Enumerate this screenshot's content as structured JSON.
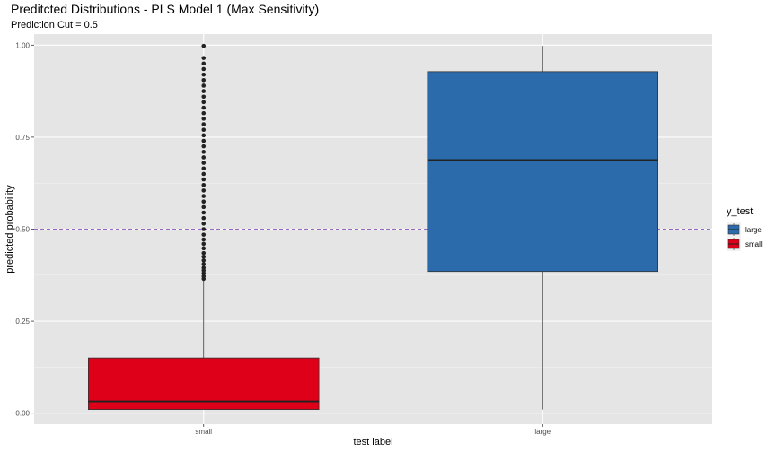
{
  "chart_data": {
    "type": "boxplot",
    "title": "Preditcted Distributions - PLS Model 1 (Max Sensitivity)",
    "subtitle": "Prediction Cut = 0.5",
    "xlabel": "test label",
    "ylabel": "predicted probability",
    "categories": [
      "small",
      "large"
    ],
    "ylim": [
      -0.03,
      1.03
    ],
    "yticks": [
      0.0,
      0.25,
      0.5,
      0.75,
      1.0
    ],
    "ytick_labels": [
      "0.00",
      "0.25",
      "0.50",
      "0.75",
      "1.00"
    ],
    "grid": true,
    "reference_line": {
      "y": 0.5,
      "style": "dashed",
      "color": "#9966cc"
    },
    "legend": {
      "title": "y_test",
      "placement": "right",
      "entries": [
        {
          "label": "large",
          "color": "#2b6aab"
        },
        {
          "label": "small",
          "color": "#de0018"
        }
      ]
    },
    "boxes": [
      {
        "category": "small",
        "color": "#de0018",
        "min": 0.01,
        "q1": 0.01,
        "median": 0.032,
        "q3": 0.15,
        "whisker_high": 0.365,
        "outliers": [
          0.365,
          0.372,
          0.38,
          0.388,
          0.395,
          0.405,
          0.415,
          0.425,
          0.435,
          0.448,
          0.46,
          0.472,
          0.485,
          0.5,
          0.515,
          0.53,
          0.545,
          0.56,
          0.575,
          0.59,
          0.605,
          0.62,
          0.635,
          0.65,
          0.665,
          0.68,
          0.695,
          0.71,
          0.725,
          0.74,
          0.755,
          0.77,
          0.785,
          0.8,
          0.815,
          0.83,
          0.845,
          0.86,
          0.875,
          0.89,
          0.905,
          0.92,
          0.935,
          0.95,
          0.965,
          0.998
        ]
      },
      {
        "category": "large",
        "color": "#2b6aab",
        "min": 0.01,
        "q1": 0.385,
        "median": 0.688,
        "q3": 0.928,
        "whisker_high": 0.998,
        "outliers": []
      }
    ]
  }
}
